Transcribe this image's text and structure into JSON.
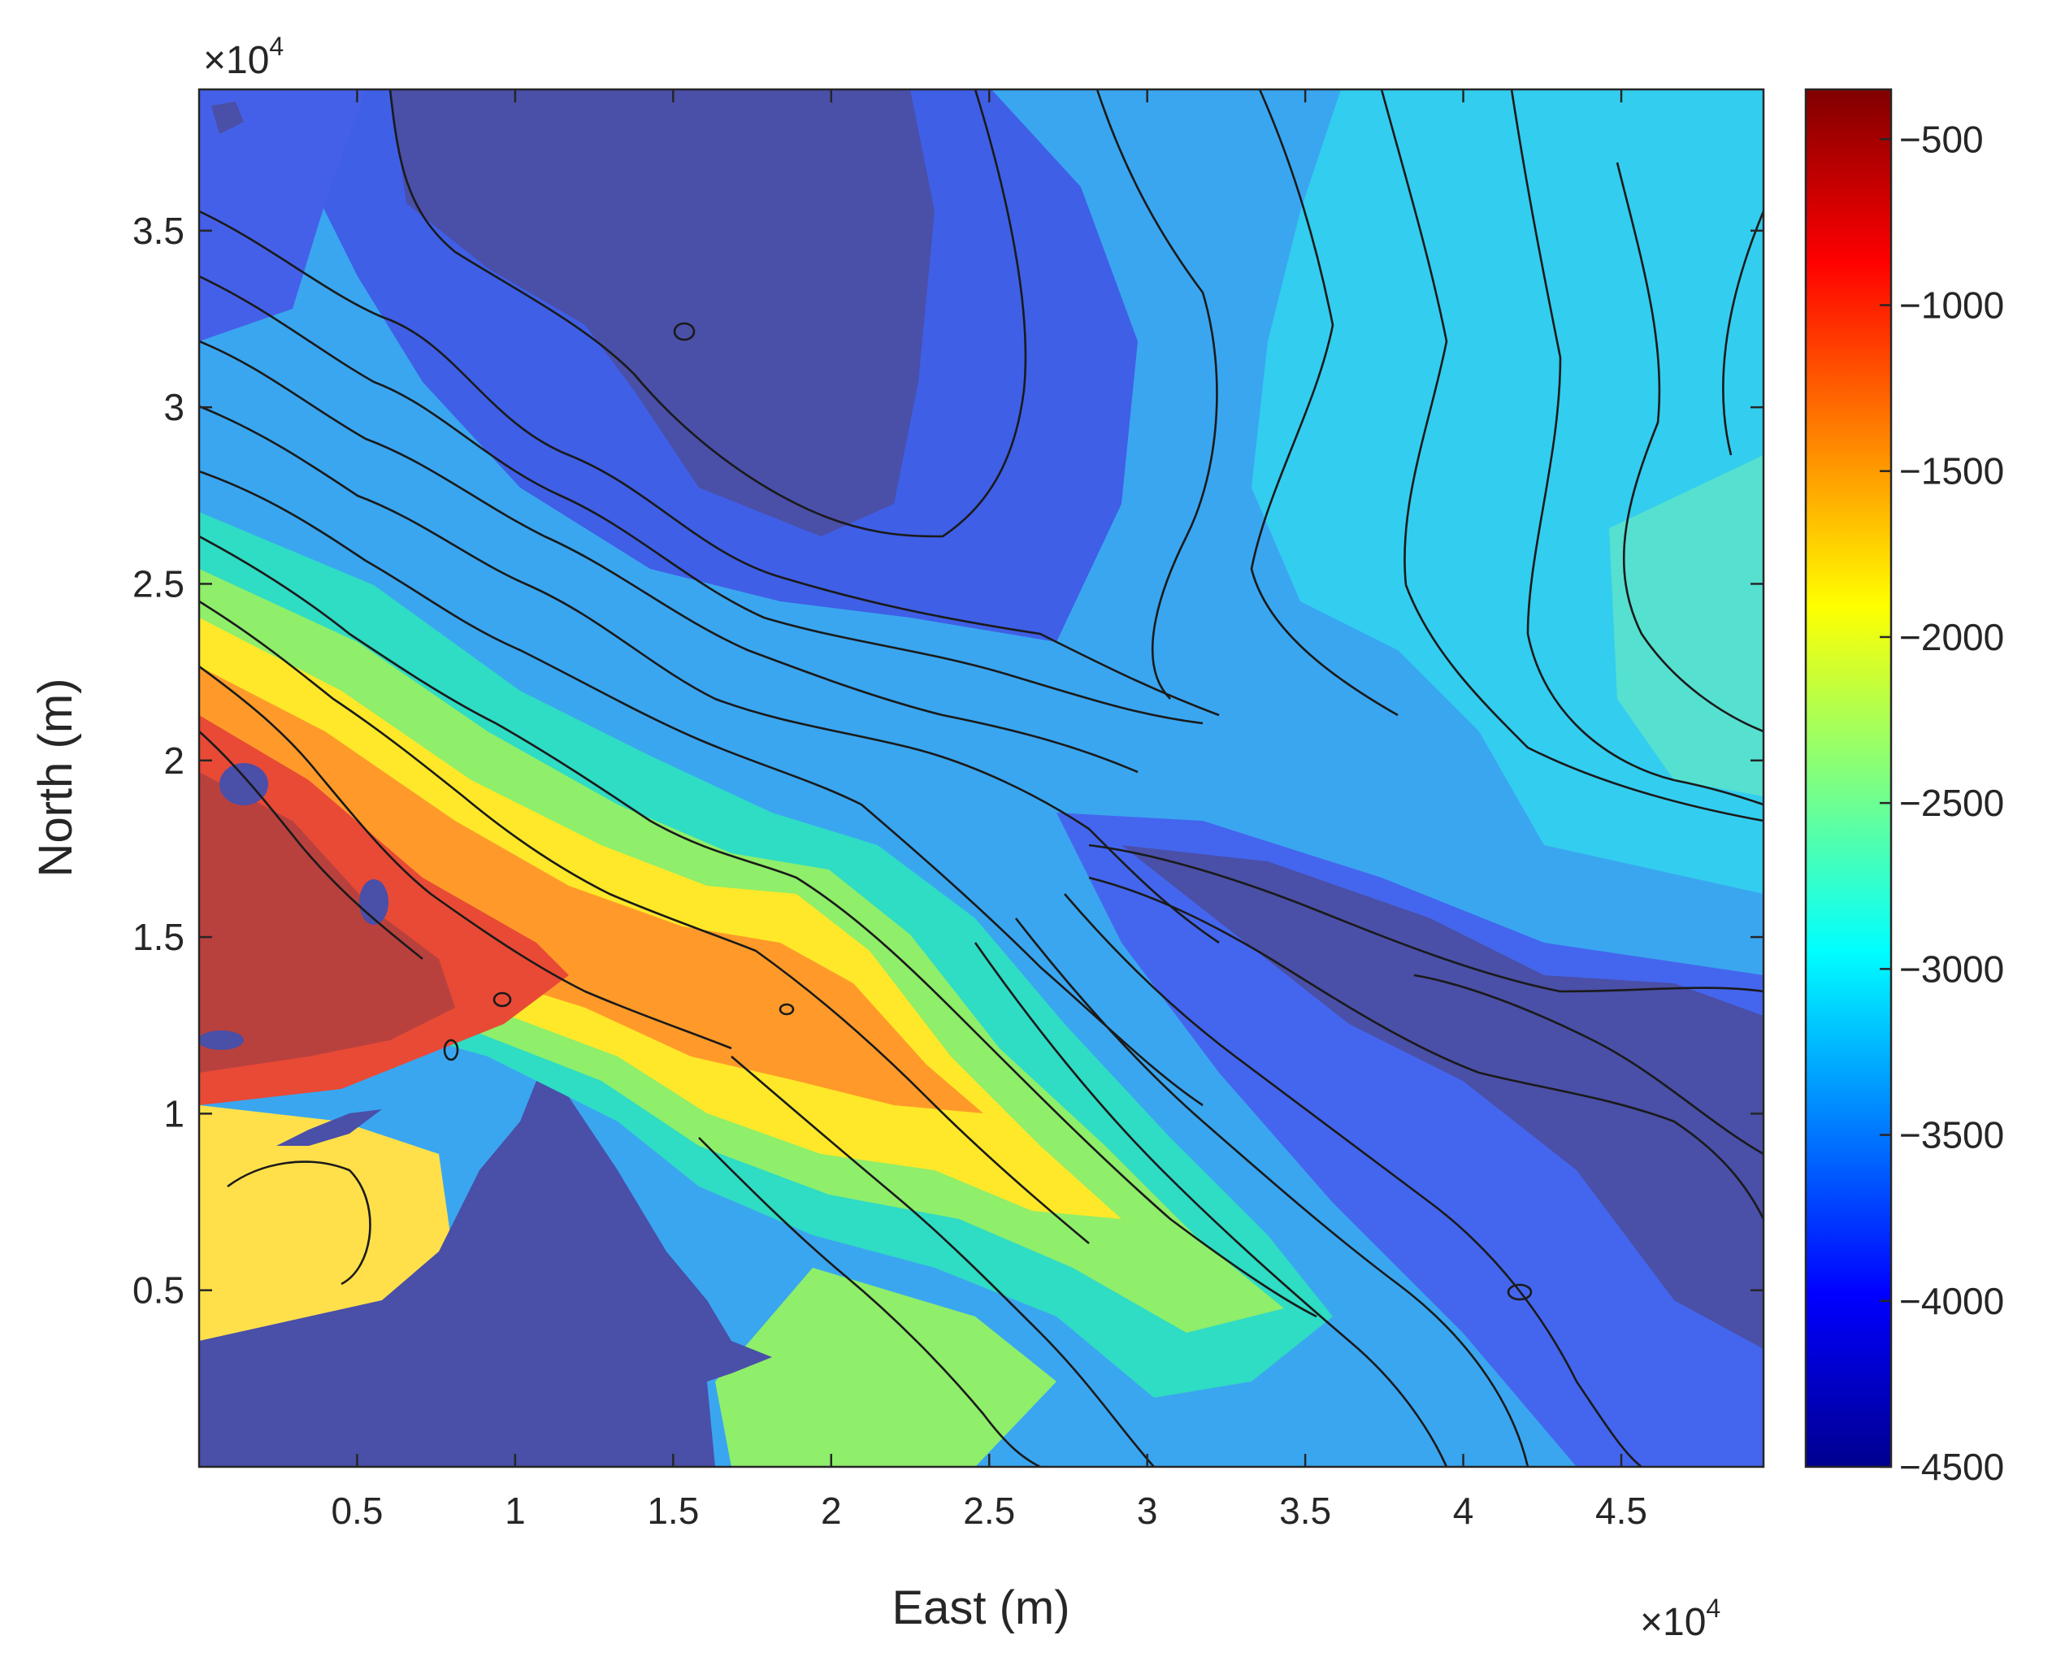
{
  "chart_data": {
    "type": "heatmap",
    "subtype": "filled contour map",
    "title": "",
    "xlabel": "East (m)",
    "ylabel": "North (m)",
    "x_multiplier": "×10",
    "x_multiplier_exp": "4",
    "y_multiplier": "×10",
    "y_multiplier_exp": "4",
    "xlim": [
      0,
      49500
    ],
    "ylim": [
      0,
      39000
    ],
    "x_ticks": [
      {
        "value": 5000,
        "label": "0.5"
      },
      {
        "value": 10000,
        "label": "1"
      },
      {
        "value": 15000,
        "label": "1.5"
      },
      {
        "value": 20000,
        "label": "2"
      },
      {
        "value": 25000,
        "label": "2.5"
      },
      {
        "value": 30000,
        "label": "3"
      },
      {
        "value": 35000,
        "label": "3.5"
      },
      {
        "value": 40000,
        "label": "4"
      },
      {
        "value": 45000,
        "label": "4.5"
      }
    ],
    "y_ticks": [
      {
        "value": 5000,
        "label": "0.5"
      },
      {
        "value": 10000,
        "label": "1"
      },
      {
        "value": 15000,
        "label": "1.5"
      },
      {
        "value": 20000,
        "label": "2"
      },
      {
        "value": 25000,
        "label": "2.5"
      },
      {
        "value": 30000,
        "label": "3"
      },
      {
        "value": 35000,
        "label": "3.5"
      }
    ],
    "colorbar": {
      "colormap": "jet",
      "clim": [
        -4500,
        -350
      ],
      "ticks": [
        {
          "value": -500,
          "label": "−500"
        },
        {
          "value": -1000,
          "label": "−1000"
        },
        {
          "value": -1500,
          "label": "−1500"
        },
        {
          "value": -2000,
          "label": "−2000"
        },
        {
          "value": -2500,
          "label": "−2500"
        },
        {
          "value": -3000,
          "label": "−3000"
        },
        {
          "value": -3500,
          "label": "−3500"
        },
        {
          "value": -4000,
          "label": "−4000"
        },
        {
          "value": -4500,
          "label": "−4500"
        }
      ]
    },
    "mask_color": "#4a4fa8",
    "surface_features": {
      "shallow_zone": "southwest (red, about −700 to −1200)",
      "deep_zones": [
        "north basin around East 1–2.3×10^4, North 2.6–3.9×10^4",
        "east trough around East 3–4.9×10^4, North 0.5–1.8×10^4"
      ]
    }
  }
}
